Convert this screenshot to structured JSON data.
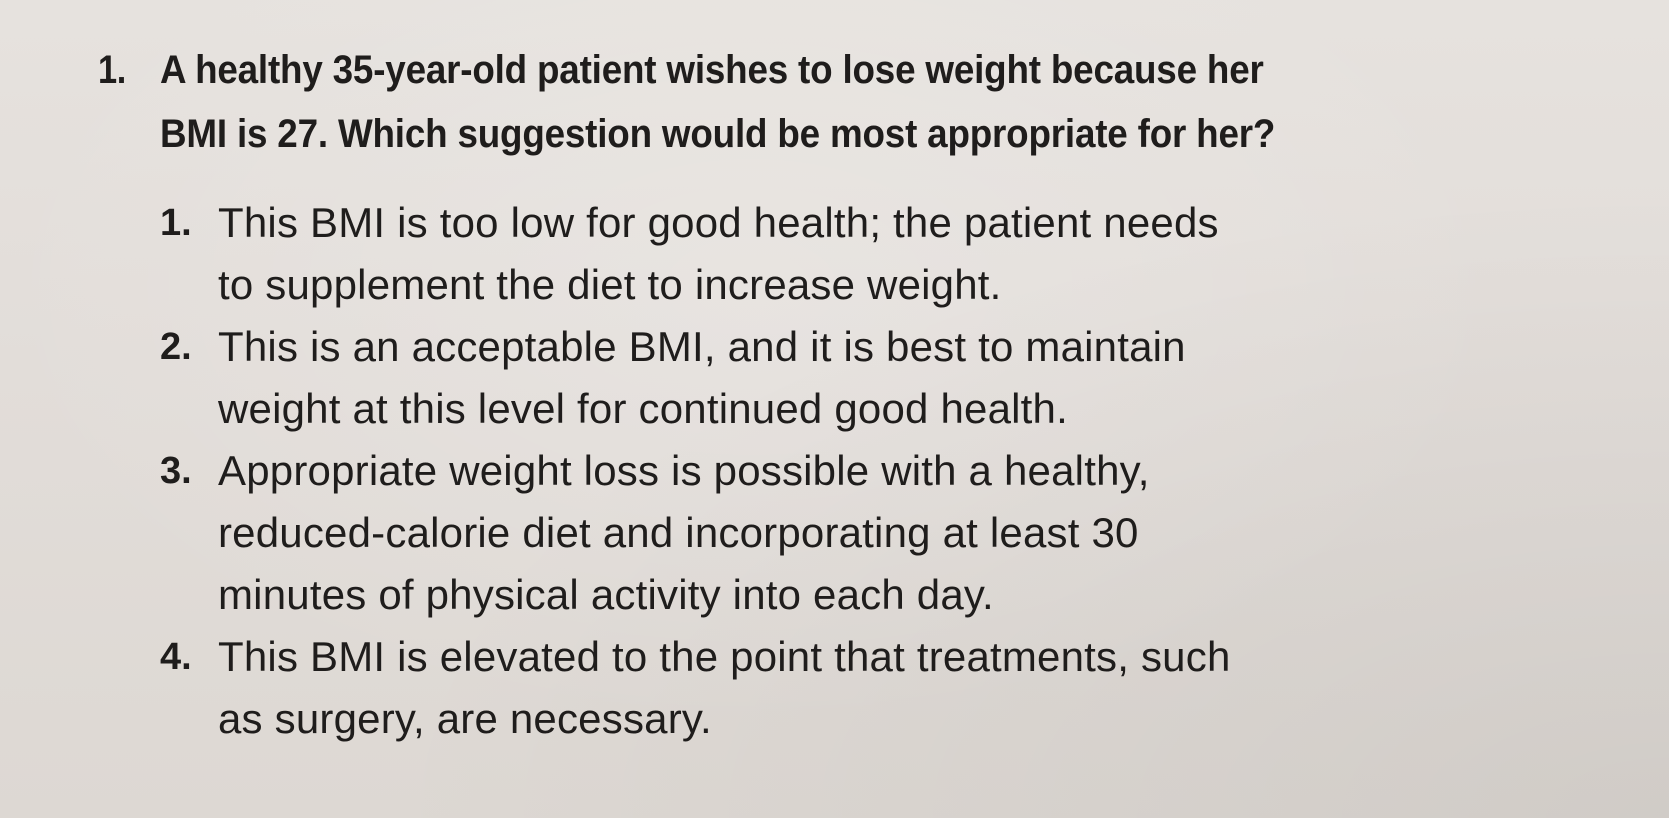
{
  "question": {
    "number": "1.",
    "stem_lines": [
      "A healthy 35-year-old patient wishes to lose weight because her",
      "BMI is 27. Which suggestion would be most appropriate for her?"
    ]
  },
  "options": [
    {
      "number": "1.",
      "lines": [
        "This BMI is too low for good health; the patient needs",
        "to supplement the diet to increase weight."
      ]
    },
    {
      "number": "2.",
      "lines": [
        "This is an acceptable BMI, and it is best to maintain",
        "weight at this level for continued good health."
      ]
    },
    {
      "number": "3.",
      "lines": [
        "Appropriate weight loss is possible with a healthy,",
        "reduced-calorie diet and incorporating at least 30",
        "minutes of physical activity into each day."
      ]
    },
    {
      "number": "4.",
      "lines": [
        "This BMI is elevated to the point that treatments, such",
        "as surgery, are necessary."
      ]
    }
  ]
}
